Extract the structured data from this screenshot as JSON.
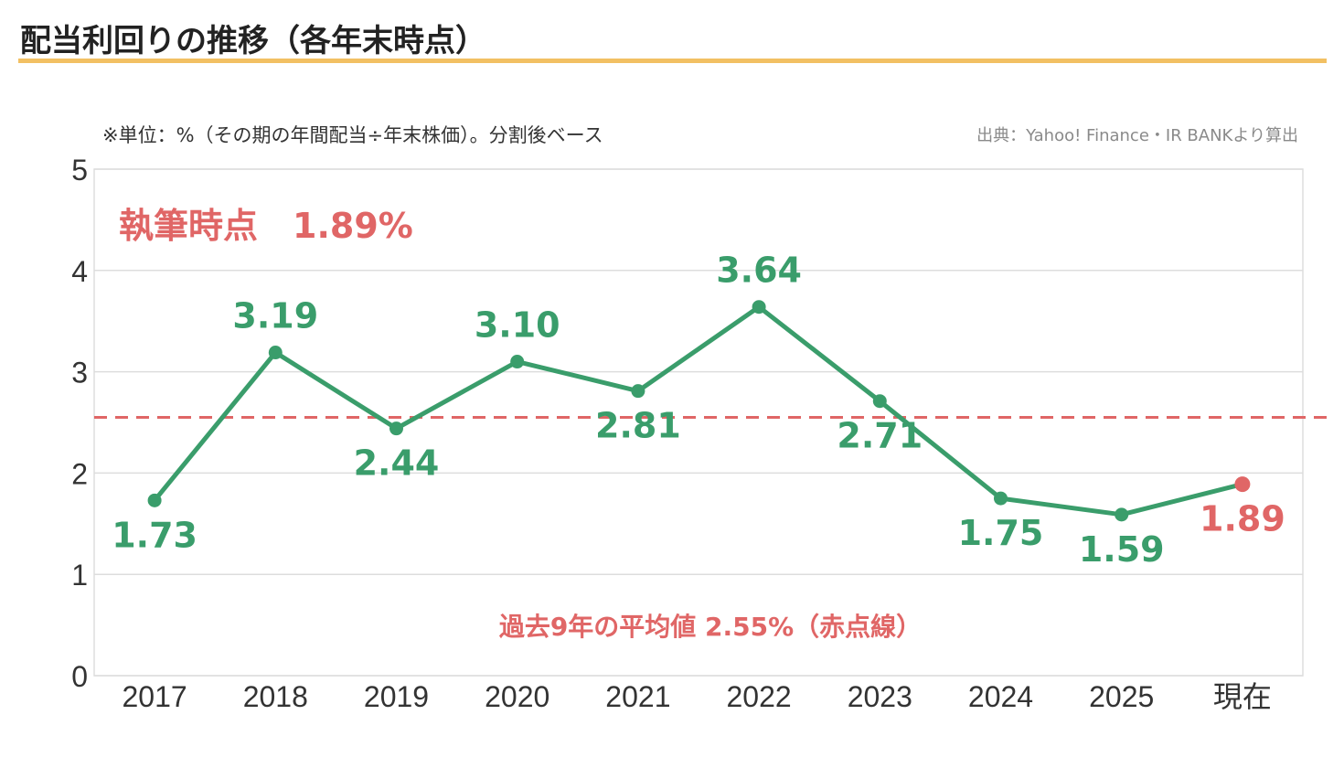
{
  "title": "配当利回りの推移（各年末時点）",
  "note": "※単位：%（その期の年間配当÷年末株価）。分割後ベース",
  "source": "出典：Yahoo! Finance・IR BANKより算出",
  "colors": {
    "line": "#3a9d6b",
    "current": "#e06666",
    "average": "#e06666",
    "title_rule": "#f2c063",
    "grid": "#dddddd"
  },
  "chart_data": {
    "type": "line",
    "categories": [
      "2017",
      "2018",
      "2019",
      "2020",
      "2021",
      "2022",
      "2023",
      "2024",
      "2025",
      "現在"
    ],
    "values": [
      1.73,
      3.19,
      2.44,
      3.1,
      2.81,
      3.64,
      2.71,
      1.75,
      1.59,
      1.89
    ],
    "data_labels": [
      "1.73",
      "3.19",
      "2.44",
      "3.10",
      "2.81",
      "3.64",
      "2.71",
      "1.75",
      "1.59",
      "1.89"
    ],
    "ylim": [
      0,
      5
    ],
    "yticks": [
      "0",
      "1",
      "2",
      "3",
      "4",
      "5"
    ],
    "grid": true,
    "highlight_last": true,
    "average": {
      "value": 2.55,
      "style": "dashed"
    },
    "current_annotation": "執筆時点　1.89%",
    "average_annotation": "過去9年の平均値 2.55%（赤点線）"
  }
}
